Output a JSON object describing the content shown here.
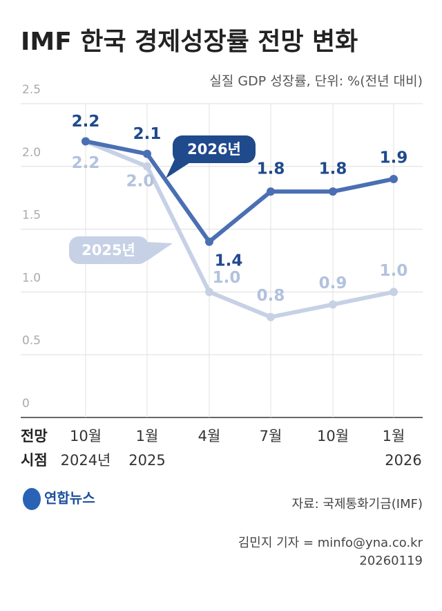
{
  "chart_data": {
    "type": "line",
    "title": "IMF 한국 경제성장률 전망 변화",
    "subtitle": "실질 GDP 성장률, 단위: %(전년 대비)",
    "categories": [
      "10월",
      "1월",
      "4월",
      "7월",
      "10월",
      "1월"
    ],
    "category_years": [
      "2024년",
      "2025",
      null,
      null,
      null,
      "2026"
    ],
    "x_label": [
      "전망",
      "시점"
    ],
    "series": [
      {
        "name": "2025년",
        "color": "#c6d1e6",
        "label_color": "#b2c2de",
        "values": [
          2.2,
          2.0,
          1.0,
          0.8,
          0.9,
          1.0
        ],
        "value_labels": [
          "2.2",
          "2.0",
          "1.0",
          "0.8",
          "0.9",
          "1.0"
        ]
      },
      {
        "name": "2026년",
        "color": "#4a6fb3",
        "label_color": "#1f4a8c",
        "values": [
          2.2,
          2.1,
          1.4,
          1.8,
          1.8,
          1.9
        ]
      }
    ],
    "ylim": [
      0,
      2.5
    ],
    "yticks": [
      0,
      0.5,
      {
        "value": 1,
        "label": "1.0"
      },
      1.5,
      {
        "value": 2,
        "label": "2.0"
      },
      2.5
    ],
    "grid": true,
    "source": "자료: 국제통화기금(IMF)",
    "logo": "연합뉴스",
    "credit": "김민지 기자 = minfo@yna.co.kr",
    "date": "20260119"
  }
}
